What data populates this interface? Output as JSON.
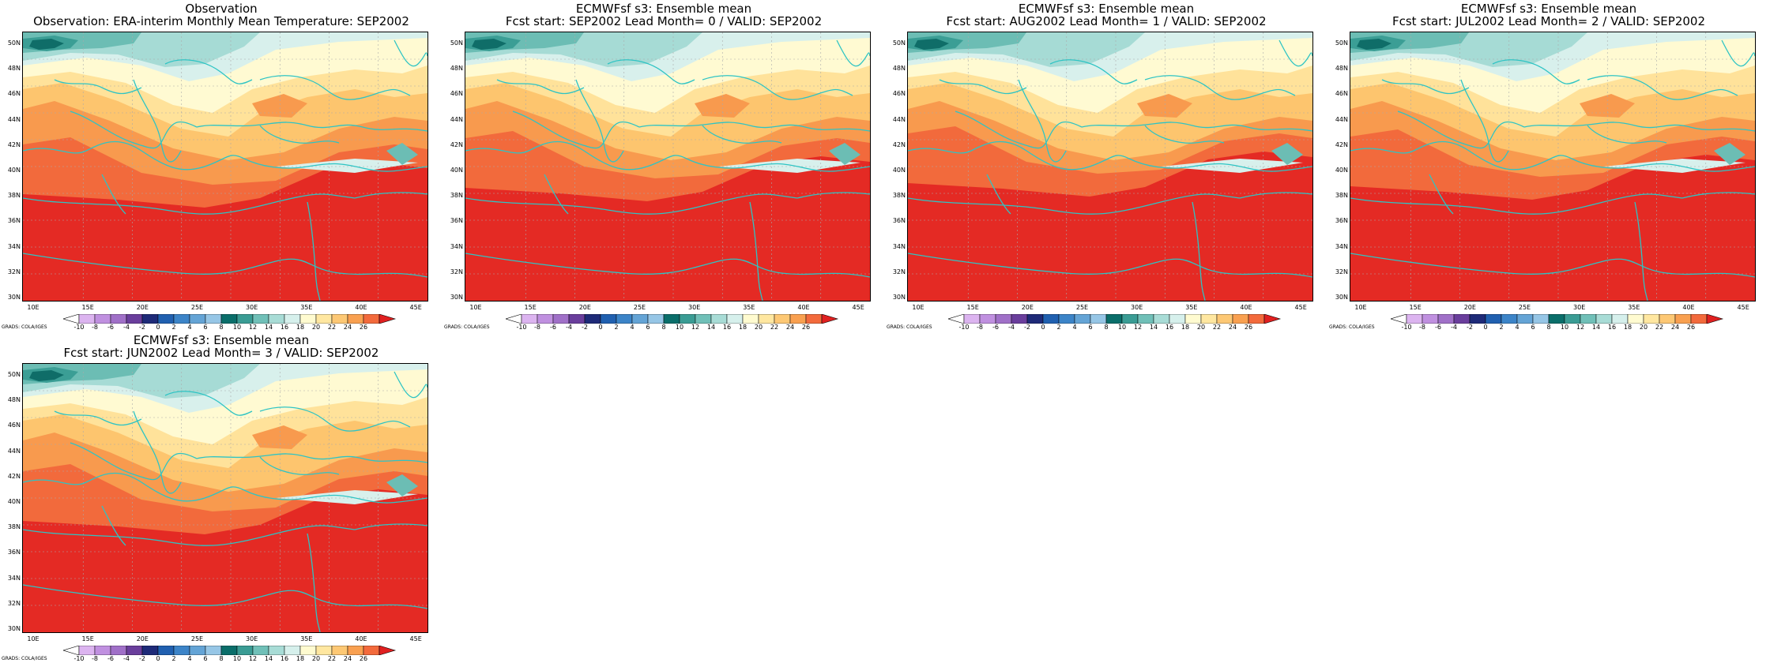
{
  "y_ticks": [
    "50N",
    "48N",
    "46N",
    "44N",
    "42N",
    "40N",
    "38N",
    "36N",
    "34N",
    "32N",
    "30N"
  ],
  "x_ticks": [
    "10E",
    "15E",
    "20E",
    "25E",
    "30E",
    "35E",
    "40E",
    "45E"
  ],
  "colorbar": {
    "labels": [
      "-10",
      "-8",
      "-6",
      "-4",
      "-2",
      "0",
      "2",
      "4",
      "6",
      "8",
      "10",
      "12",
      "14",
      "16",
      "18",
      "20",
      "22",
      "24",
      "26"
    ],
    "colors": [
      "#dcb4f0",
      "#c090e0",
      "#a070c8",
      "#6a3e9c",
      "#1e2a78",
      "#2060b0",
      "#3c84c8",
      "#64a4d6",
      "#96c6e6",
      "#0a6e6a",
      "#3a9c94",
      "#70c0b8",
      "#a8dcd6",
      "#d6f0ec",
      "#fffbd0",
      "#ffe7a0",
      "#fdc874",
      "#f9a050",
      "#f36a3c"
    ],
    "arrow_left_color": "#ffffff",
    "arrow_right_color": "#e02020",
    "credit": "GRADS: COLA/IGES"
  },
  "palette": {
    "coast": "#2ec4c4",
    "grid": "#aaaaaa",
    "c10": "#0f6d68",
    "c12": "#3b9e95",
    "c14": "#6cbdb4",
    "c16": "#a6dbd5",
    "c18": "#d8f0ec",
    "c20": "#fffad2",
    "c22": "#ffe29a",
    "c24": "#fdc56e",
    "c26": "#f89a4e",
    "c28": "#f26a3c",
    "c30": "#e42a24"
  },
  "panels": [
    {
      "title": "Observation",
      "subtitle": "Observation: ERA-interim Monthly Mean Temperature: SEP2002"
    },
    {
      "title": "ECMWFsf s3: Ensemble mean",
      "subtitle": "Fcst start: SEP2002  Lead Month= 0 / VALID: SEP2002"
    },
    {
      "title": "ECMWFsf s3: Ensemble mean",
      "subtitle": "Fcst start: AUG2002  Lead Month= 1 / VALID: SEP2002"
    },
    {
      "title": "ECMWFsf s3: Ensemble mean",
      "subtitle": "Fcst start: JUL2002  Lead Month= 2 / VALID: SEP2002"
    },
    {
      "title": "ECMWFsf s3: Ensemble mean",
      "subtitle": "Fcst start: JUN2002  Lead Month= 3 / VALID: SEP2002"
    }
  ]
}
